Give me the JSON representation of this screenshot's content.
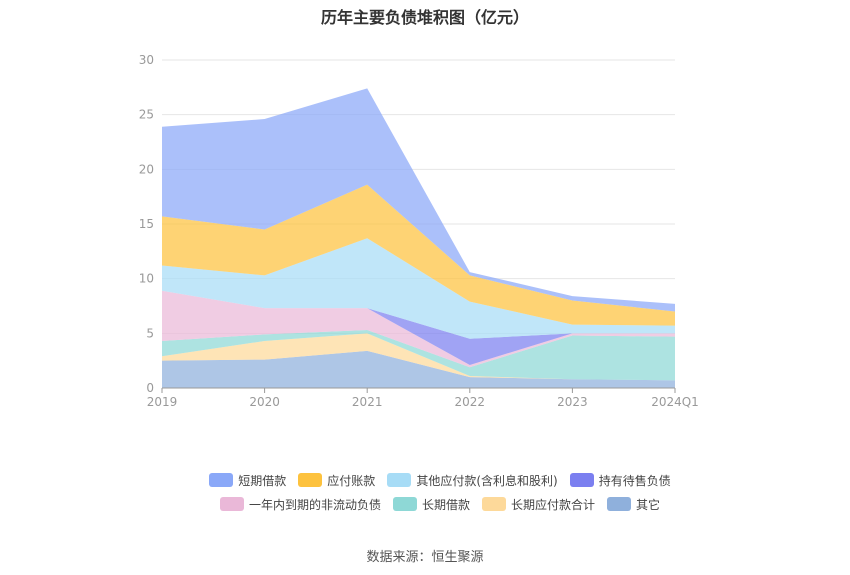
{
  "chart_data": {
    "type": "area",
    "stacked": true,
    "title": "历年主要负债堆积图（亿元）",
    "categories": [
      "2019",
      "2020",
      "2021",
      "2022",
      "2023",
      "2024Q1"
    ],
    "ylim": [
      0,
      30
    ],
    "yticks": [
      0,
      5,
      10,
      15,
      20,
      25,
      30
    ],
    "grid": true,
    "legend_position": "bottom",
    "series": [
      {
        "name": "其它",
        "color": "#8fb0dc",
        "values": [
          2.5,
          2.6,
          3.4,
          1.0,
          0.8,
          0.7
        ]
      },
      {
        "name": "长期应付款合计",
        "color": "#fdd99a",
        "values": [
          0.4,
          1.7,
          1.6,
          0.1,
          0.0,
          0.0
        ]
      },
      {
        "name": "长期借款",
        "color": "#8ed8d6",
        "values": [
          1.4,
          0.6,
          0.3,
          0.8,
          4.0,
          4.0
        ]
      },
      {
        "name": "一年内到期的非流动负债",
        "color": "#eab8d8",
        "values": [
          4.6,
          2.4,
          2.0,
          0.2,
          0.2,
          0.3
        ]
      },
      {
        "name": "持有待售负债",
        "color": "#7b7ff0",
        "values": [
          0.0,
          0.0,
          0.0,
          2.4,
          0.0,
          0.0
        ]
      },
      {
        "name": "其他应付款(含利息和股利)",
        "color": "#a7dcf6",
        "values": [
          2.3,
          3.0,
          6.4,
          3.4,
          0.8,
          0.7
        ]
      },
      {
        "name": "应付账款",
        "color": "#fdc23e",
        "values": [
          4.5,
          4.2,
          4.9,
          2.4,
          2.2,
          1.3
        ]
      },
      {
        "name": "短期借款",
        "color": "#8aa8f8",
        "values": [
          8.2,
          10.1,
          8.8,
          0.3,
          0.4,
          0.7
        ]
      }
    ]
  },
  "legend": {
    "row1": [
      {
        "label": "短期借款",
        "color": "#8aa8f8"
      },
      {
        "label": "应付账款",
        "color": "#fdc23e"
      },
      {
        "label": "其他应付款(含利息和股利)",
        "color": "#a7dcf6"
      },
      {
        "label": "持有待售负债",
        "color": "#7b7ff0"
      }
    ],
    "row2": [
      {
        "label": "一年内到期的非流动负债",
        "color": "#eab8d8"
      },
      {
        "label": "长期借款",
        "color": "#8ed8d6"
      },
      {
        "label": "长期应付款合计",
        "color": "#fdd99a"
      },
      {
        "label": "其它",
        "color": "#8fb0dc"
      }
    ]
  },
  "source": "数据来源：恒生聚源"
}
